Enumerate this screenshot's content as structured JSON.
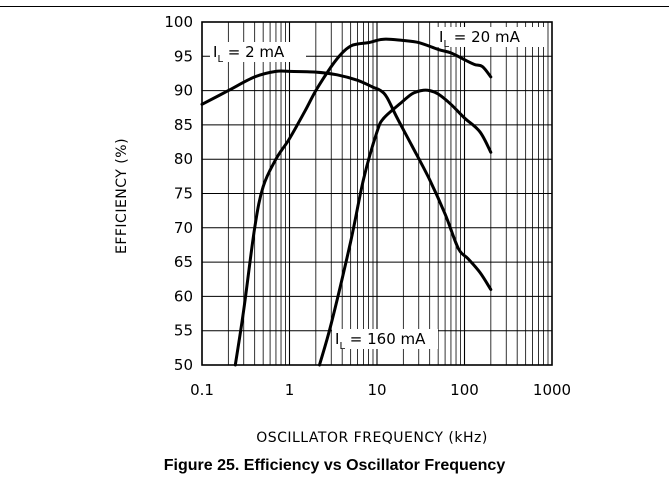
{
  "caption": "Figure 25. Efficiency vs Oscillator Frequency",
  "chart_data": {
    "type": "line",
    "xlabel": "OSCILLATOR FREQUENCY (kHz)",
    "ylabel": "EFFICIENCY (%)",
    "xscale": "log",
    "xlim": [
      0.1,
      1000
    ],
    "ylim": [
      50,
      100
    ],
    "xticks": [
      "0.1",
      "1",
      "10",
      "100",
      "1000"
    ],
    "yticks": [
      "50",
      "55",
      "60",
      "65",
      "70",
      "75",
      "80",
      "85",
      "90",
      "95",
      "100"
    ],
    "grid": true,
    "annotations": [
      {
        "main": "I",
        "sub": "L",
        "rest": " = 2 mA"
      },
      {
        "main": "I",
        "sub": "L",
        "rest": " = 20 mA"
      },
      {
        "main": "I",
        "sub": "L",
        "rest": " = 160 mA"
      }
    ],
    "series": [
      {
        "label": "IL = 2 mA",
        "x": [
          0.1,
          0.2,
          0.4,
          0.7,
          1.0,
          2.0,
          3.5,
          6.0,
          9.0,
          11.0,
          13.0,
          17.0,
          25.0,
          40.0,
          60.0,
          85.0,
          110.0,
          150.0,
          200.0
        ],
        "y": [
          88,
          90,
          92,
          92.8,
          92.8,
          92.7,
          92.3,
          91.5,
          90.5,
          90,
          89,
          86,
          82,
          77,
          72,
          67,
          65.5,
          63.5,
          61
        ]
      },
      {
        "label": "IL = 20 mA",
        "x": [
          0.24,
          0.3,
          0.4,
          0.5,
          0.7,
          1.0,
          1.5,
          2.0,
          3.0,
          4.0,
          5.0,
          6.0,
          8.0,
          12.0,
          20.0,
          30.0,
          50.0,
          70.0,
          100.0,
          130.0,
          160.0,
          200.0
        ],
        "y": [
          50,
          58,
          70,
          76,
          80,
          83,
          87,
          90,
          93.5,
          95.5,
          96.5,
          96.8,
          97,
          97.5,
          97.3,
          97,
          96,
          95.5,
          94.5,
          93.8,
          93.5,
          92
        ]
      },
      {
        "label": "IL = 160 mA",
        "x": [
          2.2,
          3.0,
          5.0,
          7.0,
          10.0,
          12.0,
          18.0,
          25.0,
          32.0,
          40.0,
          50.0,
          70.0,
          100.0,
          150.0,
          200.0
        ],
        "y": [
          50,
          56,
          68,
          77,
          84,
          86,
          88,
          89.5,
          90,
          90,
          89.5,
          88,
          86,
          84,
          81
        ]
      }
    ]
  }
}
